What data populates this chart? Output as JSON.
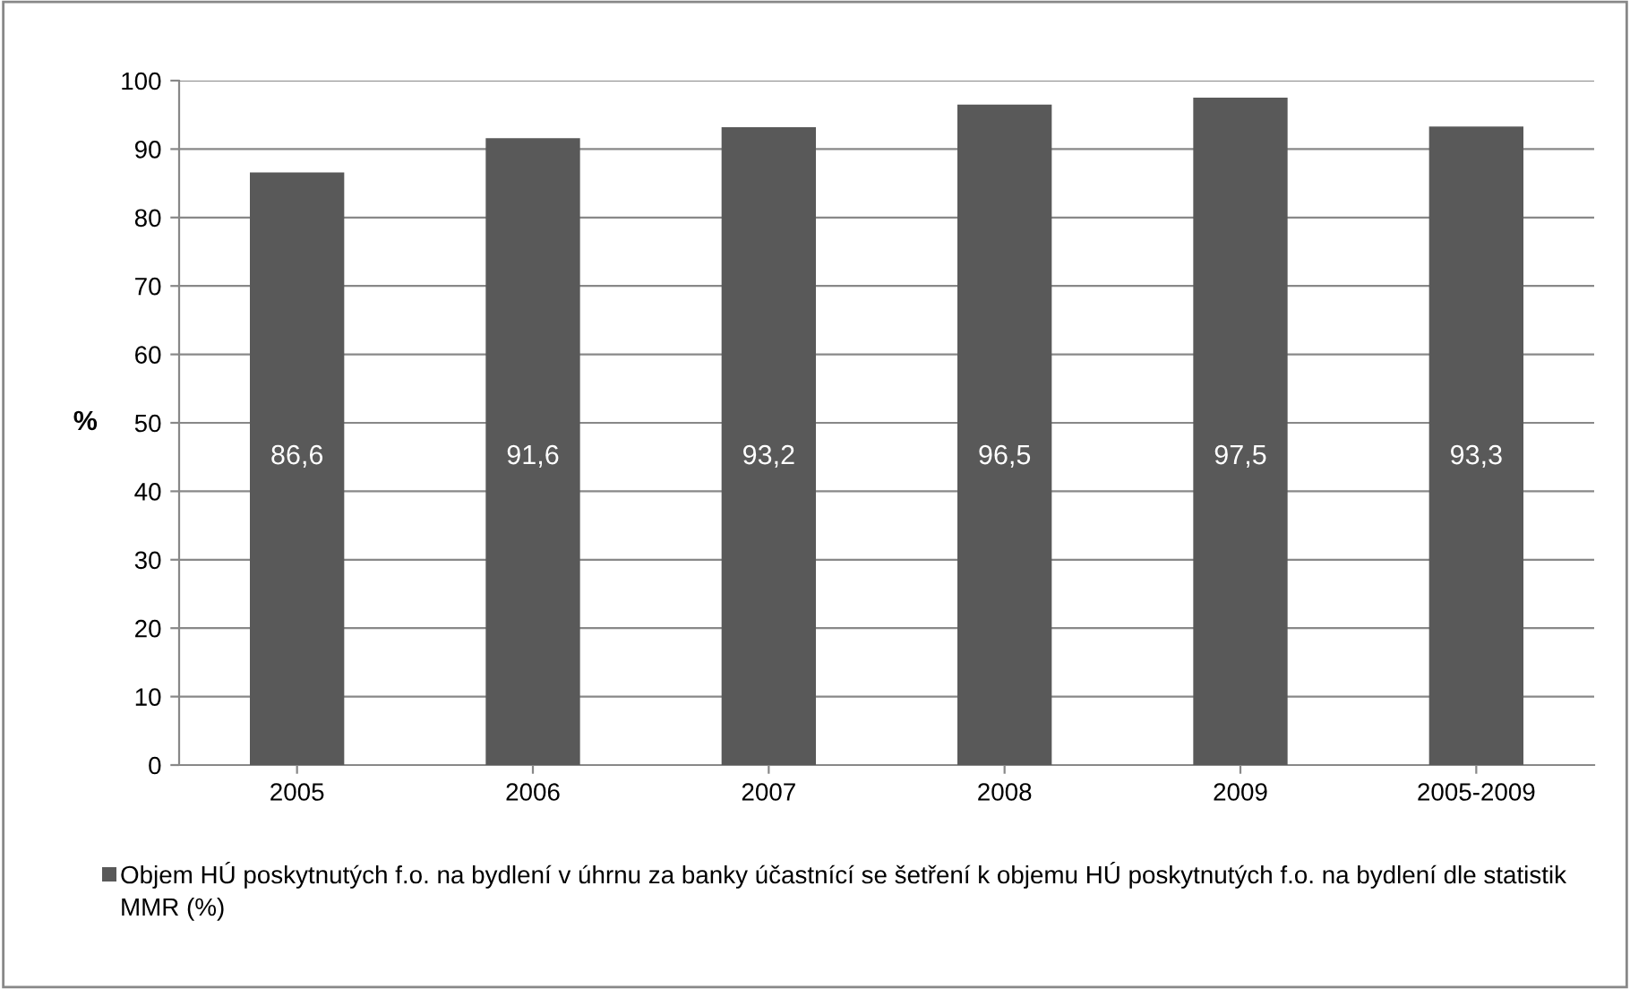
{
  "chart_data": {
    "type": "bar",
    "ylabel": "%",
    "categories": [
      "2005",
      "2006",
      "2007",
      "2008",
      "2009",
      "2005-2009"
    ],
    "series": [
      {
        "name": "Objem HÚ poskytnutých f.o. na bydlení v úhrnu za banky účastnící se šetření k objemu HÚ poskytnutých f.o. na bydlení dle statistik MMR (%)",
        "color": "#595959",
        "values": [
          86.6,
          91.6,
          93.2,
          96.5,
          97.5,
          93.3
        ],
        "value_labels": [
          "86,6",
          "91,6",
          "93,2",
          "96,5",
          "97,5",
          "93,3"
        ]
      }
    ],
    "ylim": [
      0,
      100
    ],
    "yticks": [
      0,
      10,
      20,
      30,
      40,
      50,
      60,
      70,
      80,
      90,
      100
    ],
    "grid": "y",
    "legend": "bottom"
  }
}
